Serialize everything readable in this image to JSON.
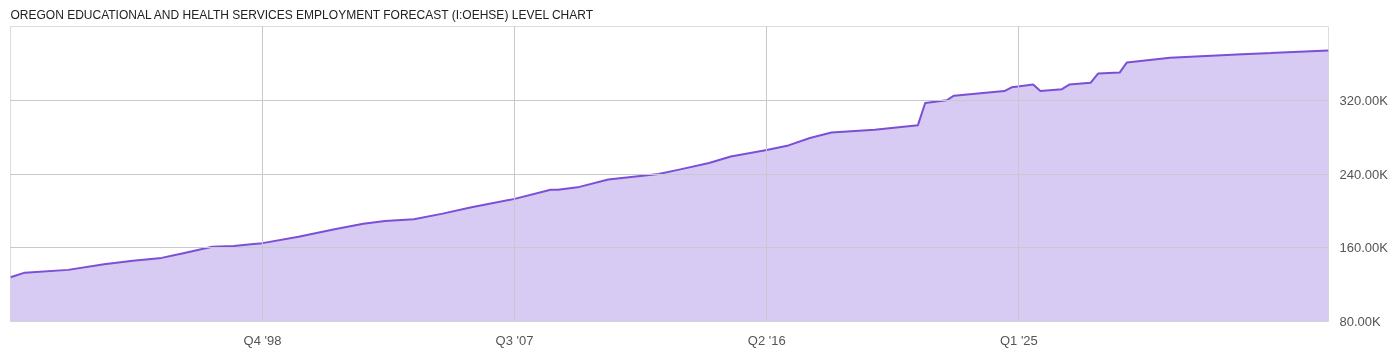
{
  "chart_data": {
    "type": "area",
    "title": "OREGON EDUCATIONAL AND HEALTH SERVICES EMPLOYMENT FORECAST (I:OEHSE) LEVEL CHART",
    "x": [
      "1990-01",
      "1990-07",
      "1992-01",
      "1993-04",
      "1994-04",
      "1995-04",
      "1996-01",
      "1997-01",
      "1997-10",
      "1998-10",
      "2000-01",
      "2001-04",
      "2002-04",
      "2003-01",
      "2004-01",
      "2005-01",
      "2006-01",
      "2007-07",
      "2008-10",
      "2009-01",
      "2009-10",
      "2010-10",
      "2012-07",
      "2013-04",
      "2014-04",
      "2015-01",
      "2016-04",
      "2017-01",
      "2017-10",
      "2018-07",
      "2020-01",
      "2021-07",
      "2021-10",
      "2022-07",
      "2022-10",
      "2024-07",
      "2024-10",
      "2025-07",
      "2025-10",
      "2026-07",
      "2026-10",
      "2027-07",
      "2027-10",
      "2028-07",
      "2028-10",
      "2030-04",
      "2032-10",
      "2035-10"
    ],
    "series": [
      {
        "color": "#7b4fd6",
        "values": [
          128000,
          133000,
          136000,
          142000,
          146000,
          149000,
          154000,
          161000,
          162000,
          165000,
          172000,
          180000,
          186000,
          189000,
          191000,
          197000,
          204000,
          213000,
          223000,
          223000,
          226000,
          234000,
          240000,
          245000,
          252000,
          259000,
          266000,
          271000,
          279000,
          285000,
          288000,
          293000,
          317000,
          320000,
          325000,
          330000,
          334000,
          337000,
          330000,
          332000,
          337000,
          339000,
          349000,
          350000,
          361000,
          366000,
          370000,
          374000
        ]
      }
    ],
    "xlim": [
      "1990-01",
      "2035-10"
    ],
    "xticks": [
      {
        "value": "1998-10",
        "label": "Q4 '98"
      },
      {
        "value": "2007-07",
        "label": "Q3 '07"
      },
      {
        "value": "2016-04",
        "label": "Q2 '16"
      },
      {
        "value": "2025-01",
        "label": "Q1 '25"
      }
    ],
    "ylim": [
      80000,
      400000
    ],
    "yticks": [
      {
        "value": 80000,
        "label": "80.00K"
      },
      {
        "value": 160000,
        "label": "160.00K"
      },
      {
        "value": 240000,
        "label": "240.00K"
      },
      {
        "value": 320000,
        "label": "320.00K"
      }
    ],
    "grid": true
  }
}
